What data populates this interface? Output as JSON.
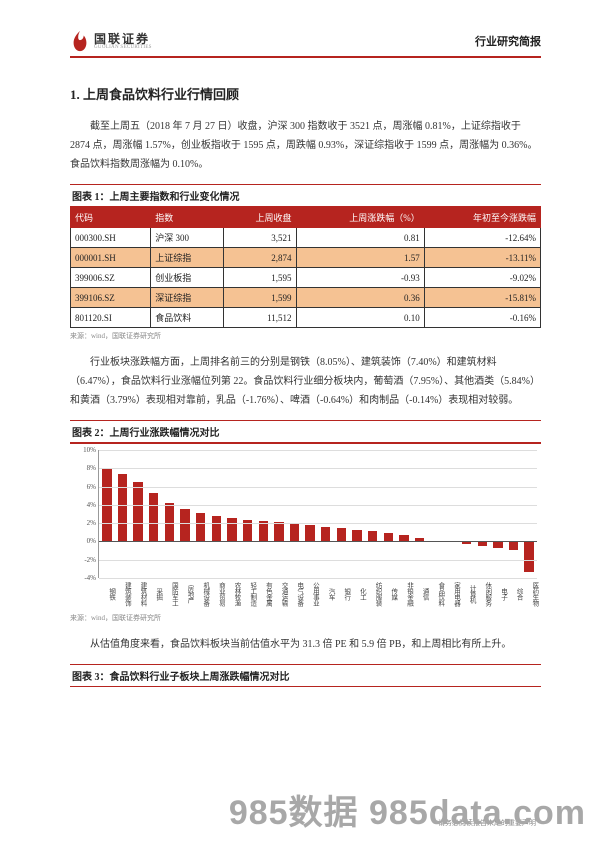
{
  "header": {
    "logo_cn": "国联证券",
    "logo_en": "GUOLIAN SECURITIES",
    "report_type": "行业研究简报"
  },
  "section": {
    "title": "1.  上周食品饮料行业行情回顾",
    "para1": "截至上周五（2018 年 7 月 27 日）收盘，沪深 300 指数收于 3521 点，周涨幅 0.81%，上证综指收于 2874 点，周涨幅 1.57%，创业板指收于 1595 点，周跌幅 0.93%，深证综指收于 1599 点，周涨幅为 0.36%。食品饮料指数周涨幅为 0.10%。",
    "para2": "行业板块涨跌幅方面，上周排名前三的分别是钢铁（8.05%）、建筑装饰（7.40%）和建筑材料（6.47%），食品饮料行业涨幅位列第 22。食品饮料行业细分板块内，葡萄酒（7.95%）、其他酒类（5.84%）和黄酒（3.79%）表现相对靠前，乳品（-1.76%）、啤酒（-0.64%）和肉制品（-0.14%）表现相对较弱。",
    "para3": "从估值角度来看，食品饮料板块当前估值水平为 31.3 倍 PE 和 5.9 倍 PB，和上周相比有所上升。"
  },
  "table1": {
    "caption": "图表 1：上周主要指数和行业变化情况",
    "headers": [
      "代码",
      "指数",
      "上周收盘",
      "上周涨跌幅（%）",
      "年初至今涨跌幅"
    ],
    "rows": [
      {
        "cells": [
          "000300.SH",
          "沪深 300",
          "3,521",
          "0.81",
          "-12.64%"
        ],
        "hl": false
      },
      {
        "cells": [
          "000001.SH",
          "上证综指",
          "2,874",
          "1.57",
          "-13.11%"
        ],
        "hl": true
      },
      {
        "cells": [
          "399006.SZ",
          "创业板指",
          "1,595",
          "-0.93",
          "-9.02%"
        ],
        "hl": false
      },
      {
        "cells": [
          "399106.SZ",
          "深证综指",
          "1,599",
          "0.36",
          "-15.81%"
        ],
        "hl": true
      },
      {
        "cells": [
          "801120.SI",
          "食品饮料",
          "11,512",
          "0.10",
          "-0.16%"
        ],
        "hl": false
      }
    ],
    "source": "来源：wind，国联证券研究所"
  },
  "chart": {
    "caption": "图表 2：上周行业涨跌幅情况对比",
    "source": "来源：wind，国联证券研究所",
    "type": "bar",
    "ylim": [
      -4,
      10
    ],
    "yticks": [
      -4,
      -2,
      0,
      2,
      4,
      6,
      8,
      10
    ],
    "ytick_labels": [
      "-4%",
      "-2%",
      "0%",
      "2%",
      "4%",
      "6%",
      "8%",
      "10%"
    ],
    "bar_color": "#b6241f",
    "grid_color": "#dddddd",
    "axis_color": "#999999",
    "categories": [
      "钢铁",
      "建筑装饰",
      "建筑材料",
      "采掘",
      "国防军工",
      "房地产",
      "机械设备",
      "商业贸易",
      "农林牧渔",
      "轻工制造",
      "有色金属",
      "交通运输",
      "电气设备",
      "公用事业",
      "汽车",
      "银行",
      "化工",
      "纺织服装",
      "传媒",
      "非银金融",
      "通信",
      "食品饮料",
      "家用电器",
      "计算机",
      "休闲服务",
      "电子",
      "综合",
      "医药生物"
    ],
    "values": [
      8.05,
      7.4,
      6.47,
      5.35,
      4.2,
      3.6,
      3.1,
      2.75,
      2.55,
      2.4,
      2.25,
      2.1,
      1.95,
      1.8,
      1.6,
      1.45,
      1.3,
      1.15,
      0.95,
      0.75,
      0.4,
      0.1,
      -0.1,
      -0.3,
      -0.55,
      -0.75,
      -0.9,
      -3.3
    ]
  },
  "table3": {
    "caption": "图表 3：食品饮料行业子板块上周涨跌幅情况对比"
  },
  "footer": {
    "page_num": "5",
    "note": "请务必阅读报告末尾的重要声明",
    "watermark": "985数据 985data.com"
  },
  "colors": {
    "brand_red": "#b6241f",
    "highlight_row": "#f5c293",
    "text": "#333333",
    "muted": "#888888"
  }
}
